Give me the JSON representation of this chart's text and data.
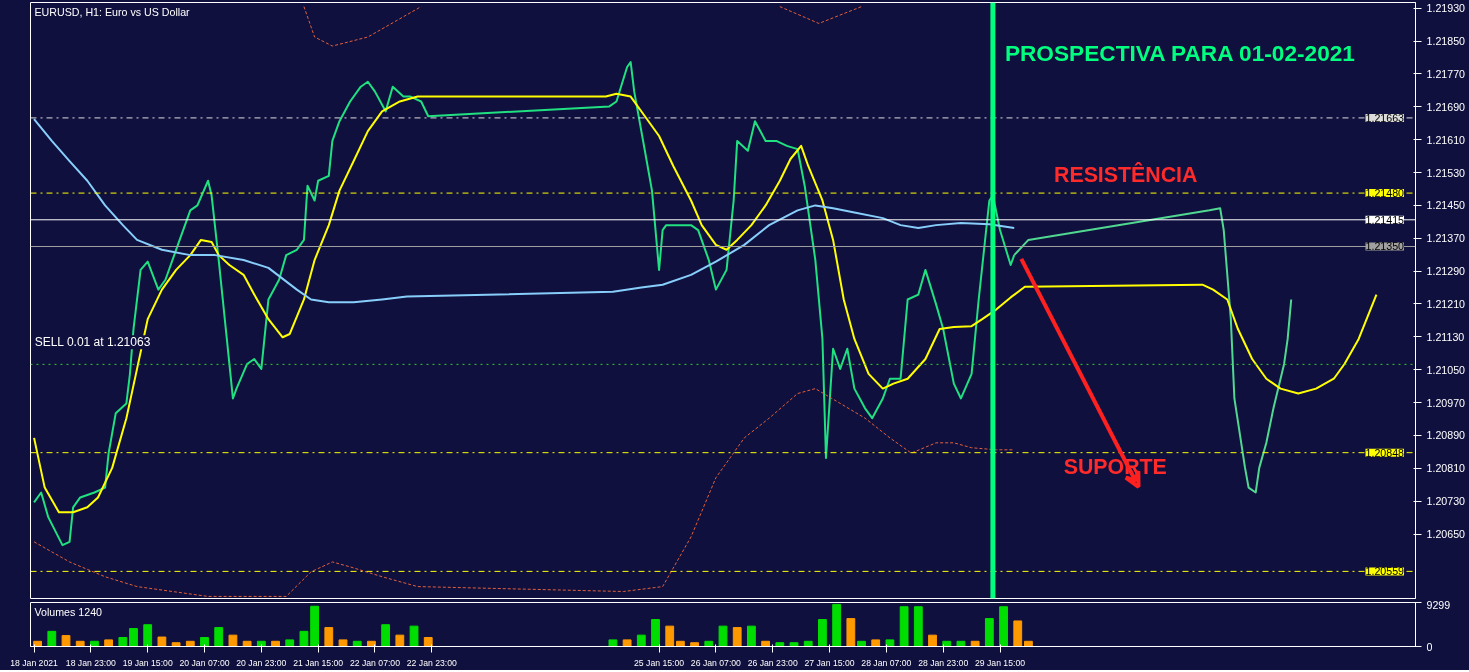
{
  "chart_data": [
    {
      "type": "line",
      "title": "EURUSD, H1:  Euro vs US Dollar",
      "xlim": [
        "2021-01-18T06:00",
        "2021-02-03T12:00"
      ],
      "ylim": [
        1.20493,
        1.21944
      ],
      "yticks": [
        {
          "value": 1.2193,
          "label": "1.21930"
        },
        {
          "value": 1.2185,
          "label": "1.21850"
        },
        {
          "value": 1.2177,
          "label": "1.21770"
        },
        {
          "value": 1.2169,
          "label": "1.21690"
        },
        {
          "value": 1.2161,
          "label": "1.21610"
        },
        {
          "value": 1.2153,
          "label": "1.21530"
        },
        {
          "value": 1.2145,
          "label": "1.21450"
        },
        {
          "value": 1.2137,
          "label": "1.21370"
        },
        {
          "value": 1.2129,
          "label": "1.21290"
        },
        {
          "value": 1.2121,
          "label": "1.21210"
        },
        {
          "value": 1.2113,
          "label": "1.21130"
        },
        {
          "value": 1.2105,
          "label": "1.21050"
        },
        {
          "value": 1.2097,
          "label": "1.20970"
        },
        {
          "value": 1.2089,
          "label": "1.20890"
        },
        {
          "value": 1.2081,
          "label": "1.20810"
        },
        {
          "value": 1.2073,
          "label": "1.20730"
        },
        {
          "value": 1.2065,
          "label": "1.20650"
        }
      ],
      "tick_labels": "y",
      "grid": false,
      "series": [
        {
          "color": "#20e080",
          "x": [
            "2021-01-18T07:00",
            "2021-01-18T09:00",
            "2021-01-18T11:00",
            "2021-01-18T15:00",
            "2021-01-18T17:00",
            "2021-01-18T18:00",
            "2021-01-18T20:00",
            "2021-01-19T00:00",
            "2021-01-19T03:00",
            "2021-01-19T04:00",
            "2021-01-19T06:00",
            "2021-01-19T09:00",
            "2021-01-19T10:00",
            "2021-01-19T11:00",
            "2021-01-19T13:00",
            "2021-01-19T15:00",
            "2021-01-19T18:00",
            "2021-01-19T20:00",
            "2021-01-20T00:00",
            "2021-01-20T03:00",
            "2021-01-20T05:00",
            "2021-01-20T08:00",
            "2021-01-20T09:00",
            "2021-01-20T11:00",
            "2021-01-20T13:00",
            "2021-01-20T15:00",
            "2021-01-20T16:00",
            "2021-01-20T19:00",
            "2021-01-20T21:00",
            "2021-01-20T23:00",
            "2021-01-21T01:00",
            "2021-01-21T04:00",
            "2021-01-21T06:00",
            "2021-01-21T09:00",
            "2021-01-21T11:00",
            "2021-01-21T12:00",
            "2021-01-21T14:00",
            "2021-01-21T15:00",
            "2021-01-21T18:00",
            "2021-01-21T19:00",
            "2021-01-21T21:00",
            "2021-01-22T00:00",
            "2021-01-22T03:00",
            "2021-01-22T05:00",
            "2021-01-22T07:00",
            "2021-01-22T10:00",
            "2021-01-22T12:00",
            "2021-01-22T15:00",
            "2021-01-22T17:00",
            "2021-01-22T20:00",
            "2021-01-22T22:00",
            "2021-01-25T01:00",
            "2021-01-25T03:00",
            "2021-01-25T06:00",
            "2021-01-25T07:00",
            "2021-01-25T08:00",
            "2021-01-25T11:00",
            "2021-01-25T13:00",
            "2021-01-25T15:00",
            "2021-01-25T16:00",
            "2021-01-25T17:00",
            "2021-01-25T20:00",
            "2021-01-26T00:00",
            "2021-01-26T02:00",
            "2021-01-26T05:00",
            "2021-01-26T07:00",
            "2021-01-26T10:00",
            "2021-01-26T12:00",
            "2021-01-26T13:00",
            "2021-01-26T16:00",
            "2021-01-26T18:00",
            "2021-01-26T21:00",
            "2021-01-27T00:00",
            "2021-01-27T03:00",
            "2021-01-27T06:00",
            "2021-01-27T08:00",
            "2021-01-27T11:00",
            "2021-01-27T13:00",
            "2021-01-27T14:00",
            "2021-01-27T16:00",
            "2021-01-27T18:00",
            "2021-01-27T20:00",
            "2021-01-27T22:00",
            "2021-01-28T01:00",
            "2021-01-28T03:00",
            "2021-01-28T06:00",
            "2021-01-28T08:00",
            "2021-01-28T11:00",
            "2021-01-28T13:00",
            "2021-01-28T16:00",
            "2021-01-28T18:00",
            "2021-01-28T21:00",
            "2021-01-28T23:00",
            "2021-01-29T02:00",
            "2021-01-29T04:00",
            "2021-01-29T07:00",
            "2021-01-29T09:00",
            "2021-01-29T12:00",
            "2021-01-29T13:00",
            "2021-01-29T15:00",
            "2021-01-29T18:00",
            "2021-01-29T19:00"
          ],
          "values": [
            1.20727,
            1.20751,
            1.20691,
            1.20623,
            1.20631,
            1.20715,
            1.20739,
            1.20751,
            1.20763,
            1.20847,
            1.20944,
            1.20968,
            1.2104,
            1.21149,
            1.21293,
            1.21313,
            1.21245,
            1.21269,
            1.21366,
            1.21438,
            1.2145,
            1.2151,
            1.21474,
            1.21317,
            1.21149,
            1.2098,
            1.21004,
            1.21064,
            1.21076,
            1.21052,
            1.21221,
            1.21269,
            1.21329,
            1.21342,
            1.21366,
            1.21498,
            1.21462,
            1.2151,
            1.21522,
            1.21607,
            1.21655,
            1.21703,
            1.21739,
            1.21751,
            1.21727,
            1.21679,
            1.21739,
            1.21715,
            1.21715,
            1.21703,
            1.21667,
            1.21691,
            1.21703,
            1.21787,
            1.21799,
            1.21727,
            1.21583,
            1.21486,
            1.21293,
            1.2139,
            1.21402,
            1.21402,
            1.21402,
            1.2139,
            1.21317,
            1.21245,
            1.21293,
            1.21462,
            1.21607,
            1.21583,
            1.21655,
            1.21607,
            1.21607,
            1.21595,
            1.21587,
            1.21498,
            1.21317,
            1.21125,
            1.20835,
            1.21101,
            1.21052,
            1.21101,
            1.21004,
            1.20956,
            1.20932,
            1.2098,
            1.21028,
            1.21028,
            1.21221,
            1.21233,
            1.21293,
            1.21209,
            1.21149,
            1.21016,
            1.2098,
            1.2104,
            1.21221,
            1.21462,
            1.21474,
            1.2139,
            1.21305,
            1.21329
          ]
        },
        {
          "color": "#50d890",
          "x": [
            "2021-01-29T19:00",
            "2021-01-29T23:00",
            "2021-02-01T02:00",
            "2021-02-01T05:00",
            "2021-02-01T06:00",
            "2021-02-01T08:00",
            "2021-02-01T09:00",
            "2021-02-01T12:00",
            "2021-02-01T13:00",
            "2021-02-01T15:00",
            "2021-02-01T16:00",
            "2021-02-01T18:00",
            "2021-02-01T20:00",
            "2021-02-01T23:00",
            "2021-02-02T00:00",
            "2021-02-02T01:00"
          ],
          "values": [
            1.21329,
            1.21366,
            1.21438,
            1.21443,
            1.2139,
            1.21173,
            1.2098,
            1.20811,
            1.20763,
            1.20751,
            1.20811,
            1.20872,
            1.20956,
            1.21064,
            1.21125,
            1.21221
          ]
        },
        {
          "color": "#ffff00",
          "x": [
            "2021-01-18T07:00",
            "2021-01-18T10:00",
            "2021-01-18T14:00",
            "2021-01-18T18:00",
            "2021-01-18T22:00",
            "2021-01-19T01:00",
            "2021-01-19T05:00",
            "2021-01-19T09:00",
            "2021-01-19T12:00",
            "2021-01-19T15:00",
            "2021-01-19T19:00",
            "2021-01-19T23:00",
            "2021-01-20T03:00",
            "2021-01-20T06:00",
            "2021-01-20T09:00",
            "2021-01-20T11:00",
            "2021-01-20T14:00",
            "2021-01-20T18:00",
            "2021-01-20T21:00",
            "2021-01-21T01:00",
            "2021-01-21T05:00",
            "2021-01-21T07:00",
            "2021-01-21T11:00",
            "2021-01-21T14:00",
            "2021-01-21T18:00",
            "2021-01-21T21:00",
            "2021-01-22T01:00",
            "2021-01-22T05:00",
            "2021-01-22T09:00",
            "2021-01-22T14:00",
            "2021-01-22T19:00",
            "2021-01-25T00:00",
            "2021-01-25T03:00",
            "2021-01-25T07:00",
            "2021-01-25T11:00",
            "2021-01-25T15:00",
            "2021-01-25T19:00",
            "2021-01-26T00:00",
            "2021-01-26T03:00",
            "2021-01-26T07:00",
            "2021-01-26T10:00",
            "2021-01-26T13:00",
            "2021-01-26T17:00",
            "2021-01-26T21:00",
            "2021-01-27T01:00",
            "2021-01-27T04:00",
            "2021-01-27T07:00",
            "2021-01-27T09:00",
            "2021-01-27T13:00",
            "2021-01-27T16:00",
            "2021-01-27T19:00",
            "2021-01-27T22:00",
            "2021-01-28T02:00",
            "2021-01-28T06:00",
            "2021-01-28T09:00",
            "2021-01-28T13:00",
            "2021-01-28T18:00",
            "2021-01-28T22:00",
            "2021-01-29T02:00",
            "2021-01-29T07:00",
            "2021-01-29T10:00",
            "2021-01-29T14:00",
            "2021-01-29T18:00",
            "2021-01-29T22:00",
            "2021-02-01T00:00",
            "2021-02-01T03:00",
            "2021-02-01T07:00",
            "2021-02-01T10:00",
            "2021-02-01T14:00",
            "2021-02-01T18:00",
            "2021-02-01T22:00",
            "2021-02-02T03:00",
            "2021-02-02T08:00",
            "2021-02-02T13:00",
            "2021-02-02T16:00",
            "2021-02-02T20:00",
            "2021-02-03T01:00"
          ],
          "values": [
            1.20884,
            1.20763,
            1.20703,
            1.20703,
            1.20715,
            1.20739,
            1.20811,
            1.20932,
            1.21052,
            1.21173,
            1.21245,
            1.21293,
            1.21329,
            1.21366,
            1.21361,
            1.21329,
            1.21305,
            1.21281,
            1.21233,
            1.21173,
            1.21129,
            1.21137,
            1.21221,
            1.21317,
            1.21402,
            1.21486,
            1.21558,
            1.21631,
            1.21679,
            1.21703,
            1.21715,
            1.21715,
            1.21722,
            1.21715,
            1.21667,
            1.21619,
            1.21546,
            1.21462,
            1.21402,
            1.21354,
            1.21342,
            1.21366,
            1.21402,
            1.2145,
            1.2151,
            1.21563,
            1.21595,
            1.21546,
            1.21462,
            1.21366,
            1.21221,
            1.21125,
            1.2104,
            1.21004,
            1.21016,
            1.21028,
            1.21076,
            1.21149,
            1.21154,
            1.21156,
            1.21173,
            1.21197,
            1.21226,
            1.21252,
            1.21257,
            1.21245,
            1.21221,
            1.21149,
            1.21076,
            1.21028,
            1.21004,
            1.20992,
            1.21004,
            1.21028,
            1.21064,
            1.21125,
            1.21233
          ]
        },
        {
          "color": "#87cefa",
          "x": [
            "2021-01-18T07:00",
            "2021-01-18T12:00",
            "2021-01-18T17:00",
            "2021-01-18T22:00",
            "2021-01-19T03:00",
            "2021-01-19T08:00",
            "2021-01-19T12:00",
            "2021-01-19T19:00",
            "2021-01-20T03:00",
            "2021-01-20T10:00",
            "2021-01-20T18:00",
            "2021-01-21T01:00",
            "2021-01-21T09:00",
            "2021-01-21T13:00",
            "2021-01-21T18:00",
            "2021-01-22T01:00",
            "2021-01-22T09:00",
            "2021-01-22T16:00",
            "2021-01-25T02:00",
            "2021-01-25T10:00",
            "2021-01-25T16:00",
            "2021-01-26T00:00",
            "2021-01-26T07:00",
            "2021-01-26T15:00",
            "2021-01-26T22:00",
            "2021-01-27T06:00",
            "2021-01-27T11:00",
            "2021-01-27T16:00",
            "2021-01-27T22:00",
            "2021-01-28T06:00",
            "2021-01-28T11:00",
            "2021-01-28T16:00",
            "2021-01-28T21:00",
            "2021-01-29T04:00",
            "2021-01-29T12:00",
            "2021-01-29T19:00"
          ],
          "values": [
            1.2166,
            1.21607,
            1.21558,
            1.2151,
            1.2145,
            1.21402,
            1.21366,
            1.21342,
            1.21329,
            1.21329,
            1.21317,
            1.21298,
            1.21245,
            1.21221,
            1.21214,
            1.21214,
            1.21221,
            1.21228,
            1.2124,
            1.2125,
            1.21257,
            1.21281,
            1.21313,
            1.21354,
            1.21402,
            1.21438,
            1.2145,
            1.21443,
            1.21433,
            1.21419,
            1.21402,
            1.21395,
            1.21402,
            1.21407,
            1.21404,
            1.21395
          ]
        },
        {
          "color": "#e0603a",
          "line_style": "dashed",
          "x": [
            "2021-01-21T11:00",
            "2021-01-21T14:00",
            "2021-01-21T19:00",
            "2021-01-22T05:00",
            "2021-01-22T20:00",
            "2021-01-26T10:00",
            "2021-01-27T01:00",
            "2021-01-27T12:00",
            "2021-01-28T00:00"
          ],
          "values": [
            1.21934,
            1.2186,
            1.21838,
            1.2186,
            1.21934,
            null,
            1.21934,
            1.21893,
            1.21934
          ]
        },
        {
          "color": "#e0603a",
          "line_style": "dashed",
          "x": [
            "2021-01-18T07:00",
            "2021-01-18T17:00",
            "2021-01-19T03:00",
            "2021-01-19T12:00",
            "2021-01-19T22:00",
            "2021-01-20T08:00",
            "2021-01-21T06:00",
            "2021-01-21T13:00",
            "2021-01-21T19:00",
            "2021-01-22T00:00",
            "2021-01-22T09:00",
            "2021-01-22T19:00",
            "2021-01-25T05:00",
            "2021-01-25T16:00",
            "2021-01-26T00:00",
            "2021-01-26T07:00",
            "2021-01-26T15:00",
            "2021-01-26T22:00",
            "2021-01-27T06:00",
            "2021-01-27T11:00",
            "2021-01-27T18:00",
            "2021-01-28T01:00",
            "2021-01-28T08:00",
            "2021-01-28T14:00",
            "2021-01-28T21:00",
            "2021-01-29T02:00",
            "2021-01-29T07:00",
            "2021-01-29T14:00",
            "2021-01-29T19:00"
          ],
          "values": [
            1.20631,
            1.20582,
            1.20546,
            1.20522,
            1.2051,
            1.20498,
            1.20498,
            1.20558,
            1.20582,
            1.2057,
            1.20546,
            1.20522,
            1.2051,
            1.20522,
            1.20643,
            1.20787,
            1.20884,
            1.20932,
            1.20992,
            1.21004,
            1.20968,
            1.20932,
            1.20884,
            1.20847,
            1.20872,
            1.20872,
            1.2086,
            1.20855,
            1.20855
          ]
        }
      ],
      "ref_lines": [
        {
          "axis": "y",
          "value": 1.21663,
          "label": "1.21663",
          "color": "#dcdcdc",
          "line_style": "dashed"
        },
        {
          "axis": "y",
          "value": 1.2148,
          "label": "1.21480",
          "color": "#ffff00",
          "line_style": "dashed"
        },
        {
          "axis": "y",
          "value": 1.21415,
          "label": "1.21415",
          "color": "#ffffff",
          "line_style": "solid"
        },
        {
          "axis": "y",
          "value": 1.2135,
          "label": "1.21350",
          "color": "#a0a0a0",
          "line_style": "solid"
        },
        {
          "axis": "y",
          "value": 1.21063,
          "color": "#32cd32",
          "line_style": "dotted"
        },
        {
          "axis": "y",
          "value": 1.20848,
          "label": "1.20848",
          "color": "#ffff00",
          "line_style": "dashed"
        },
        {
          "axis": "y",
          "value": 1.20559,
          "label": "1.20559",
          "color": "#ffff00",
          "line_style": "dashed"
        },
        {
          "axis": "x",
          "value": "2021-01-29T13:00",
          "color": "#00ff7f",
          "line_style": "solid"
        }
      ],
      "annotations": [
        "SELL 0.01 at 1.21063",
        "PROSPECTIVA PARA 01-02-2021",
        "RESISTÊNCIA",
        "SUPORTE"
      ]
    },
    {
      "type": "bar",
      "title": "Volumes 1240",
      "xlim": [
        "2021-01-18T06:00",
        "2021-02-03T12:00"
      ],
      "ylim": [
        0,
        9299
      ],
      "yticks": [
        0,
        9299
      ],
      "grid": false,
      "xticks": [
        {
          "value": "2021-01-18T07:00",
          "label": "18 Jan 2021"
        },
        {
          "value": "2021-01-18T23:00",
          "label": "18 Jan 23:00"
        },
        {
          "value": "2021-01-19T15:00",
          "label": "19 Jan 15:00"
        },
        {
          "value": "2021-01-20T07:00",
          "label": "20 Jan 07:00"
        },
        {
          "value": "2021-01-20T23:00",
          "label": "20 Jan 23:00"
        },
        {
          "value": "2021-01-21T15:00",
          "label": "21 Jan 15:00"
        },
        {
          "value": "2021-01-22T07:00",
          "label": "22 Jan 07:00"
        },
        {
          "value": "2021-01-22T23:00",
          "label": "22 Jan 23:00"
        },
        {
          "value": "2021-01-25T15:00",
          "label": "25 Jan 15:00"
        },
        {
          "value": "2021-01-26T07:00",
          "label": "26 Jan 07:00"
        },
        {
          "value": "2021-01-26T23:00",
          "label": "26 Jan 23:00"
        },
        {
          "value": "2021-01-27T15:00",
          "label": "27 Jan 15:00"
        },
        {
          "value": "2021-01-28T07:00",
          "label": "28 Jan 07:00"
        },
        {
          "value": "2021-01-28T23:00",
          "label": "28 Jan 23:00"
        },
        {
          "value": "2021-01-29T15:00",
          "label": "29 Jan 15:00"
        }
      ],
      "x": [
        "2021-01-18T08:00",
        "2021-01-18T12:00",
        "2021-01-18T16:00",
        "2021-01-18T20:00",
        "2021-01-19T00:00",
        "2021-01-19T04:00",
        "2021-01-19T08:00",
        "2021-01-19T11:00",
        "2021-01-19T15:00",
        "2021-01-19T19:00",
        "2021-01-19T23:00",
        "2021-01-20T03:00",
        "2021-01-20T07:00",
        "2021-01-20T11:00",
        "2021-01-20T15:00",
        "2021-01-20T19:00",
        "2021-01-20T23:00",
        "2021-01-21T03:00",
        "2021-01-21T07:00",
        "2021-01-21T11:00",
        "2021-01-21T14:00",
        "2021-01-21T18:00",
        "2021-01-21T22:00",
        "2021-01-22T02:00",
        "2021-01-22T06:00",
        "2021-01-22T10:00",
        "2021-01-22T14:00",
        "2021-01-22T18:00",
        "2021-01-22T22:00",
        "2021-01-25T02:00",
        "2021-01-25T06:00",
        "2021-01-25T10:00",
        "2021-01-25T14:00",
        "2021-01-25T18:00",
        "2021-01-25T21:00",
        "2021-01-26T01:00",
        "2021-01-26T05:00",
        "2021-01-26T09:00",
        "2021-01-26T13:00",
        "2021-01-26T17:00",
        "2021-01-26T21:00",
        "2021-01-27T01:00",
        "2021-01-27T05:00",
        "2021-01-27T09:00",
        "2021-01-27T13:00",
        "2021-01-27T17:00",
        "2021-01-27T21:00",
        "2021-01-28T00:00",
        "2021-01-28T04:00",
        "2021-01-28T08:00",
        "2021-01-28T12:00",
        "2021-01-28T16:00",
        "2021-01-28T20:00",
        "2021-01-29T00:00",
        "2021-01-29T04:00",
        "2021-01-29T08:00",
        "2021-01-29T12:00",
        "2021-01-29T16:00",
        "2021-01-29T20:00",
        "2021-01-29T23:00"
      ],
      "values": [
        1100,
        3200,
        2300,
        1100,
        1100,
        1400,
        1900,
        3800,
        4600,
        2000,
        800,
        1100,
        1900,
        4000,
        2400,
        1100,
        1100,
        1100,
        1400,
        3200,
        8500,
        4000,
        1400,
        1100,
        1100,
        4600,
        2400,
        4300,
        1900,
        1400,
        1400,
        2400,
        5700,
        4300,
        1100,
        800,
        1100,
        4300,
        4000,
        4300,
        1100,
        800,
        800,
        1100,
        5700,
        8900,
        5900,
        1100,
        1400,
        1400,
        8400,
        8400,
        2400,
        1100,
        1100,
        1100,
        5900,
        8400,
        5400,
        1100
      ],
      "colors": [
        "#ff9900",
        "#00dd00",
        "#ff9900",
        "#ff9900",
        "#00dd00",
        "#ff9900",
        "#00dd00",
        "#00dd00",
        "#00dd00",
        "#ff9900",
        "#ff9900",
        "#ff9900",
        "#00dd00",
        "#00dd00",
        "#ff9900",
        "#ff9900",
        "#00dd00",
        "#ff9900",
        "#00dd00",
        "#00dd00",
        "#00dd00",
        "#ff9900",
        "#ff9900",
        "#00dd00",
        "#ff9900",
        "#00dd00",
        "#ff9900",
        "#00dd00",
        "#ff9900",
        "#00dd00",
        "#ff9900",
        "#00dd00",
        "#00dd00",
        "#ff9900",
        "#ff9900",
        "#ff9900",
        "#00dd00",
        "#00dd00",
        "#ff9900",
        "#00dd00",
        "#ff9900",
        "#00dd00",
        "#00dd00",
        "#00dd00",
        "#00dd00",
        "#00dd00",
        "#ff9900",
        "#00dd00",
        "#ff9900",
        "#00dd00",
        "#00dd00",
        "#00dd00",
        "#ff9900",
        "#00dd00",
        "#00dd00",
        "#ff9900",
        "#00dd00",
        "#00dd00",
        "#ff9900",
        "#ff9900"
      ]
    }
  ]
}
